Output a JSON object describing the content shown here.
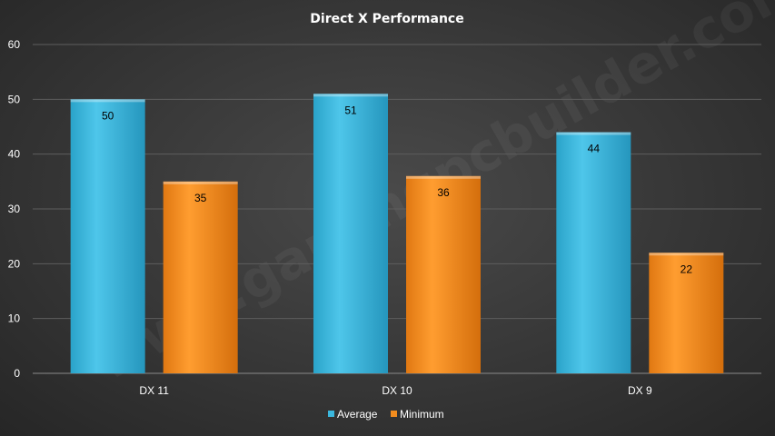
{
  "chart_data": {
    "type": "bar",
    "title": "Direct X Performance",
    "categories": [
      "DX 11",
      "DX 10",
      "DX 9"
    ],
    "series": [
      {
        "name": "Average",
        "values": [
          50,
          51,
          44
        ],
        "color": "#3bb8de"
      },
      {
        "name": "Minimum",
        "values": [
          35,
          36,
          22
        ],
        "color": "#f28c1e"
      }
    ],
    "xlabel": "",
    "ylabel": "",
    "ylim": [
      0,
      60
    ],
    "yticks": [
      0,
      10,
      20,
      30,
      40,
      50,
      60
    ],
    "grid": true,
    "legend": "bottom",
    "data_labels": true
  },
  "watermark": "www.gamingpcbuilder.com"
}
